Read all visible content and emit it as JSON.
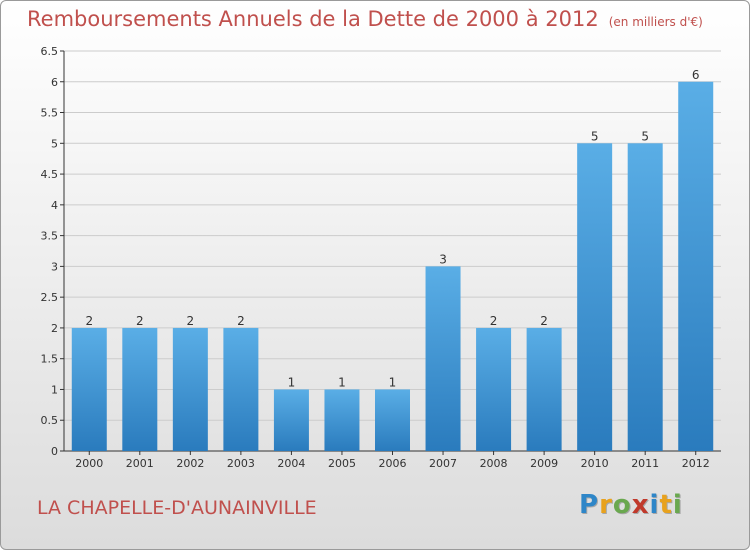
{
  "header": {
    "title": "Remboursements Annuels de la Dette de 2000 à 2012",
    "unit": "(en milliers d'€)"
  },
  "commune": "LA CHAPELLE-D'AUNAINVILLE",
  "logo": {
    "text": "Proxiti",
    "letters": [
      {
        "ch": "P",
        "color": "#2e86c8"
      },
      {
        "ch": "r",
        "color": "#e8a21d"
      },
      {
        "ch": "o",
        "color": "#6aa84f"
      },
      {
        "ch": "x",
        "color": "#c0392b"
      },
      {
        "ch": "i",
        "color": "#2e86c8"
      },
      {
        "ch": "t",
        "color": "#e8a21d"
      },
      {
        "ch": "i",
        "color": "#6aa84f"
      }
    ]
  },
  "colors": {
    "title": "#c0504d",
    "bar_top": "#5aaee6",
    "bar_bottom": "#2a7bbd",
    "grid": "#cccccc"
  },
  "chart_data": {
    "type": "bar",
    "title": "Remboursements Annuels de la Dette de 2000 à 2012",
    "xlabel": "",
    "ylabel": "(en milliers d'€)",
    "categories": [
      "2000",
      "2001",
      "2002",
      "2003",
      "2004",
      "2005",
      "2006",
      "2007",
      "2008",
      "2009",
      "2010",
      "2011",
      "2012"
    ],
    "values": [
      2,
      2,
      2,
      2,
      1,
      1,
      1,
      3,
      2,
      2,
      5,
      5,
      6
    ],
    "ylim": [
      0,
      6.5
    ],
    "yticks": [
      0,
      0.5,
      1,
      1.5,
      2,
      2.5,
      3,
      3.5,
      4,
      4.5,
      5,
      5.5,
      6,
      6.5
    ],
    "grid": true
  }
}
